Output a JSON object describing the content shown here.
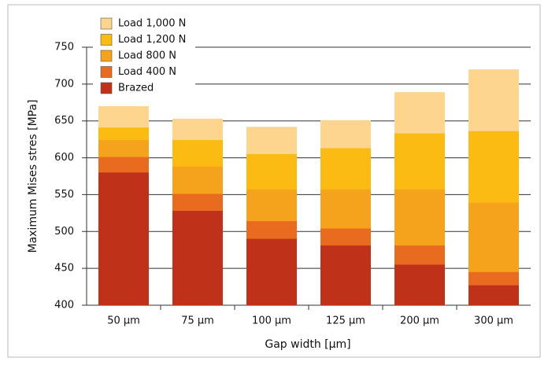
{
  "chart_data": {
    "type": "overlapping_bar",
    "y_label": "Maximum Mises stres [MPa]",
    "x_label": "Gap width [μm]",
    "categories": [
      "50 μm",
      "75 μm",
      "100 μm",
      "125 μm",
      "200 μm",
      "300 μm"
    ],
    "series": [
      {
        "name": "Load 1,000 N",
        "color": "#fdd58f",
        "values": [
          670,
          653,
          642,
          651,
          689,
          720
        ]
      },
      {
        "name": "Load 1,200 N",
        "color": "#fbbb13",
        "values": [
          641,
          624,
          605,
          613,
          633,
          636
        ]
      },
      {
        "name": "Load 800 N",
        "color": "#f5a21d",
        "values": [
          624,
          588,
          557,
          557,
          557,
          539
        ]
      },
      {
        "name": "Load 400 N",
        "color": "#e86b1f",
        "values": [
          601,
          551,
          514,
          504,
          481,
          445
        ]
      },
      {
        "name": "Brazed",
        "color": "#c0311a",
        "values": [
          580,
          528,
          490,
          481,
          455,
          427
        ]
      }
    ],
    "ylim": [
      400,
      750
    ],
    "yticks": [
      400,
      450,
      500,
      550,
      600,
      650,
      700,
      750
    ],
    "grid": true,
    "legend": "top-left"
  }
}
